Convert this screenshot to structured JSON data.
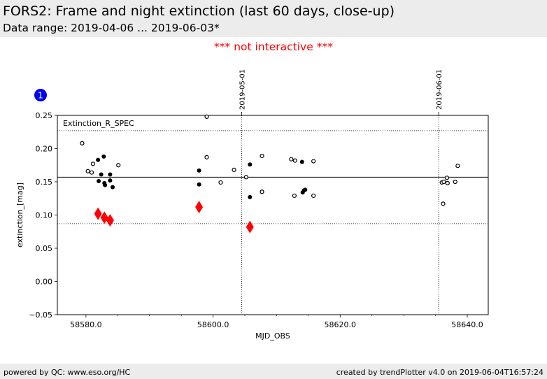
{
  "header": {
    "title": "FORS2: Frame and night extinction (last 60 days, close-up)",
    "subtitle": "Data range: 2019-04-06 ... 2019-06-03*"
  },
  "notice": "*** not interactive ***",
  "footer": {
    "left": "powered by QC: www.eso.org/HC",
    "right": "created by trendPlotter v4.0 on 2019-06-04T16:57:24"
  },
  "colors": {
    "header_bg": "#ececec",
    "notice": "#ff0000",
    "badge": "#0000ee",
    "highlight_marker": "#ff0000"
  },
  "chart_data": {
    "type": "scatter",
    "panel_badge": "1",
    "panel_label": "Extinction_R_SPEC",
    "xlabel": "MJD_OBS",
    "ylabel": "extinction_[mag]",
    "xlim": [
      58575.5,
      58643.3
    ],
    "ylim": [
      -0.05,
      0.25
    ],
    "x_ticks": [
      58580.0,
      58600.0,
      58620.0,
      58640.0
    ],
    "x_tick_labels": [
      "58580.0",
      "58600.0",
      "58620.0",
      "58640.0"
    ],
    "y_ticks": [
      -0.05,
      0.0,
      0.05,
      0.1,
      0.15,
      0.2,
      0.25
    ],
    "y_tick_labels": [
      "−0.05",
      "0.00",
      "0.05",
      "0.10",
      "0.15",
      "0.20",
      "0.25"
    ],
    "top_ticks": [
      {
        "x": 58604.5,
        "label": "2019-05-01"
      },
      {
        "x": 58635.5,
        "label": "2019-06-01"
      }
    ],
    "reference_lines": {
      "mean": 0.157,
      "upper": 0.227,
      "lower": 0.087
    },
    "grid": false,
    "series": [
      {
        "marker": "open-circle",
        "points": [
          [
            58579.4,
            0.208
          ],
          [
            58580.3,
            0.166
          ],
          [
            58580.9,
            0.164
          ],
          [
            58581.1,
            0.177
          ],
          [
            58585.1,
            0.175
          ],
          [
            58599.0,
            0.248
          ],
          [
            58599.0,
            0.187
          ],
          [
            58601.2,
            0.149
          ],
          [
            58603.3,
            0.168
          ],
          [
            58605.2,
            0.157
          ],
          [
            58607.7,
            0.189
          ],
          [
            58607.7,
            0.135
          ],
          [
            58612.3,
            0.184
          ],
          [
            58612.8,
            0.129
          ],
          [
            58612.9,
            0.182
          ],
          [
            58615.8,
            0.181
          ],
          [
            58615.8,
            0.129
          ],
          [
            58636.0,
            0.149
          ],
          [
            58636.2,
            0.117
          ],
          [
            58636.3,
            0.15
          ],
          [
            58636.8,
            0.156
          ],
          [
            58636.9,
            0.148
          ],
          [
            58638.1,
            0.15
          ],
          [
            58638.5,
            0.174
          ]
        ]
      },
      {
        "marker": "filled-circle",
        "points": [
          [
            58581.9,
            0.183
          ],
          [
            58582.0,
            0.151
          ],
          [
            58582.4,
            0.161
          ],
          [
            58582.8,
            0.188
          ],
          [
            58582.9,
            0.148
          ],
          [
            58583.0,
            0.145
          ],
          [
            58583.8,
            0.161
          ],
          [
            58583.8,
            0.152
          ],
          [
            58584.2,
            0.142
          ],
          [
            58597.8,
            0.167
          ],
          [
            58597.8,
            0.146
          ],
          [
            58605.8,
            0.176
          ],
          [
            58605.8,
            0.127
          ],
          [
            58614.0,
            0.18
          ],
          [
            58614.1,
            0.134
          ],
          [
            58614.3,
            0.137
          ],
          [
            58614.5,
            0.138
          ]
        ]
      },
      {
        "marker": "red-diamond",
        "points": [
          [
            58581.9,
            0.102
          ],
          [
            58582.9,
            0.096
          ],
          [
            58583.8,
            0.092
          ],
          [
            58597.8,
            0.112
          ],
          [
            58605.8,
            0.082
          ]
        ]
      }
    ]
  }
}
